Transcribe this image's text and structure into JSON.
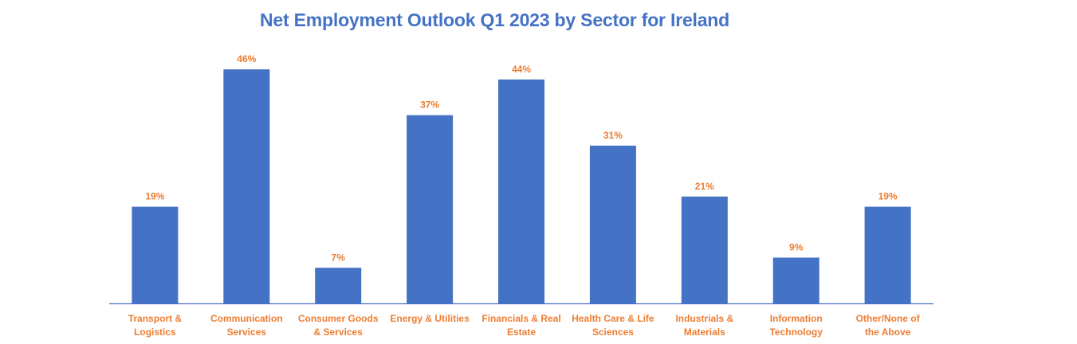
{
  "chart_data": {
    "type": "bar",
    "title": "Net Employment Outlook Q1 2023 by Sector for Ireland",
    "categories": [
      [
        "Transport &",
        "Logistics"
      ],
      [
        "Communication",
        "Services"
      ],
      [
        "Consumer Goods",
        "& Services"
      ],
      [
        "Energy & Utilities"
      ],
      [
        "Financials & Real",
        "Estate"
      ],
      [
        "Health Care & Life",
        "Sciences"
      ],
      [
        "Industrials &",
        "Materials"
      ],
      [
        "Information",
        "Technology"
      ],
      [
        "Other/None of",
        "the Above"
      ]
    ],
    "values": [
      19,
      46,
      7,
      37,
      44,
      31,
      21,
      9,
      19
    ],
    "value_labels": [
      "19%",
      "46%",
      "7%",
      "37%",
      "44%",
      "31%",
      "21%",
      "9%",
      "19%"
    ],
    "xlabel": "",
    "ylabel": "",
    "ylim": [
      0,
      50
    ],
    "grid": false,
    "legend": "none",
    "colors": {
      "bar": "#4472C4",
      "labels": "#ED7D31",
      "title": "#4472C4",
      "axis": "#4472C4"
    }
  }
}
